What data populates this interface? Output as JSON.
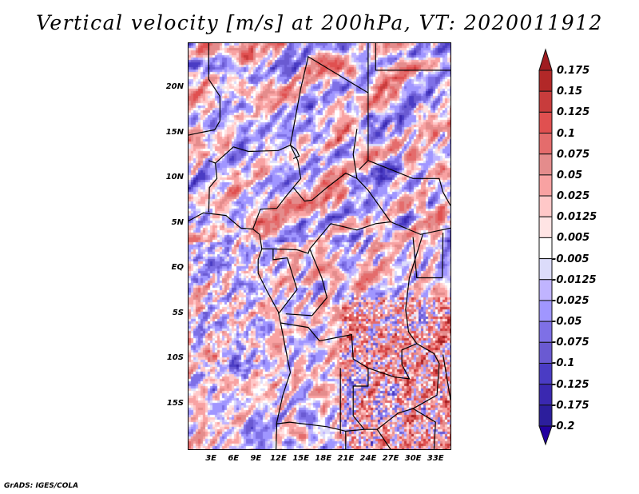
{
  "title": "Vertical velocity [m/s] at 200hPa, VT: 2020011912",
  "footer": "GrADS: IGES/COLA",
  "map": {
    "lon_range": [
      0,
      35
    ],
    "lat_range": [
      -20,
      25
    ],
    "lat_ticks": [
      {
        "value": 20,
        "label": "20N"
      },
      {
        "value": 15,
        "label": "15N"
      },
      {
        "value": 10,
        "label": "10N"
      },
      {
        "value": 5,
        "label": "5N"
      },
      {
        "value": 0,
        "label": "EQ"
      },
      {
        "value": -5,
        "label": "5S"
      },
      {
        "value": -10,
        "label": "10S"
      },
      {
        "value": -15,
        "label": "15S"
      }
    ],
    "lon_ticks": [
      {
        "value": 3,
        "label": "3E"
      },
      {
        "value": 6,
        "label": "6E"
      },
      {
        "value": 9,
        "label": "9E"
      },
      {
        "value": 12,
        "label": "12E"
      },
      {
        "value": 15,
        "label": "15E"
      },
      {
        "value": 18,
        "label": "18E"
      },
      {
        "value": 21,
        "label": "21E"
      },
      {
        "value": 24,
        "label": "24E"
      },
      {
        "value": 27,
        "label": "27E"
      },
      {
        "value": 30,
        "label": "30E"
      },
      {
        "value": 33,
        "label": "33E"
      }
    ]
  },
  "colorbar": {
    "labels": [
      "0.175",
      "0.15",
      "0.125",
      "0.1",
      "0.075",
      "0.05",
      "0.025",
      "0.0125",
      "0.005",
      "-0.005",
      "-0.0125",
      "-0.025",
      "-0.05",
      "-0.075",
      "-0.1",
      "-0.125",
      "-0.175",
      "-0.2"
    ],
    "levels": [
      0.175,
      0.15,
      0.125,
      0.1,
      0.075,
      0.05,
      0.025,
      0.0125,
      0.005,
      -0.005,
      -0.0125,
      -0.025,
      -0.05,
      -0.075,
      -0.1,
      -0.125,
      -0.175,
      -0.2
    ],
    "colors_top_to_bottom": [
      "#a01c20",
      "#b22828",
      "#c83c3c",
      "#e05050",
      "#e46c6c",
      "#e48c8c",
      "#f8a2a2",
      "#ffc8c8",
      "#ffe4e4",
      "#ffffff",
      "#dcdcfa",
      "#c0b4ff",
      "#a096ff",
      "#7e70e6",
      "#6a5ad2",
      "#4a3cc4",
      "#3a28b0",
      "#2c1e9c",
      "#2200a0"
    ]
  }
}
